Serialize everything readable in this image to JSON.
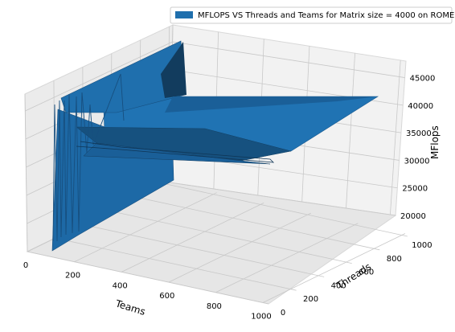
{
  "chart_data": {
    "type": "surface3d",
    "legend": {
      "label": "MFLOPS VS Threads and Teams for Matrix size = 4000 on ROME",
      "color": "#1f6fad",
      "placement": "top-right"
    },
    "xlabel": "Teams",
    "ylabel": "Threads",
    "zlabel": "MFlops",
    "xlim": [
      0,
      1024
    ],
    "ylim": [
      0,
      1024
    ],
    "zlim": [
      20000,
      48000
    ],
    "x_ticks": [
      "0",
      "200",
      "400",
      "600",
      "800",
      "1000"
    ],
    "y_ticks": [
      "0",
      "200",
      "400",
      "600",
      "800",
      "1000"
    ],
    "z_ticks": [
      "20000",
      "25000",
      "30000",
      "35000",
      "40000",
      "45000"
    ],
    "grid": true,
    "surface_color": "#1f6fad",
    "series": [
      {
        "threads": 64,
        "teams": [
          1,
          16,
          32,
          64,
          128,
          256,
          512,
          1024
        ],
        "mflops": [
          22000,
          42000,
          38000,
          43000,
          44000,
          42000,
          40000,
          40000
        ]
      },
      {
        "threads": 256,
        "teams": [
          1,
          16,
          32,
          64,
          128,
          256,
          512,
          1024
        ],
        "mflops": [
          21000,
          36000,
          34000,
          35000,
          36000,
          34000,
          33000,
          33000
        ]
      },
      {
        "threads": 1024,
        "teams": [
          1,
          16,
          32,
          64,
          128,
          256,
          512,
          1024
        ],
        "mflops": [
          45000,
          45000,
          45000,
          45000,
          45000,
          45000,
          45000,
          45000
        ]
      }
    ]
  }
}
